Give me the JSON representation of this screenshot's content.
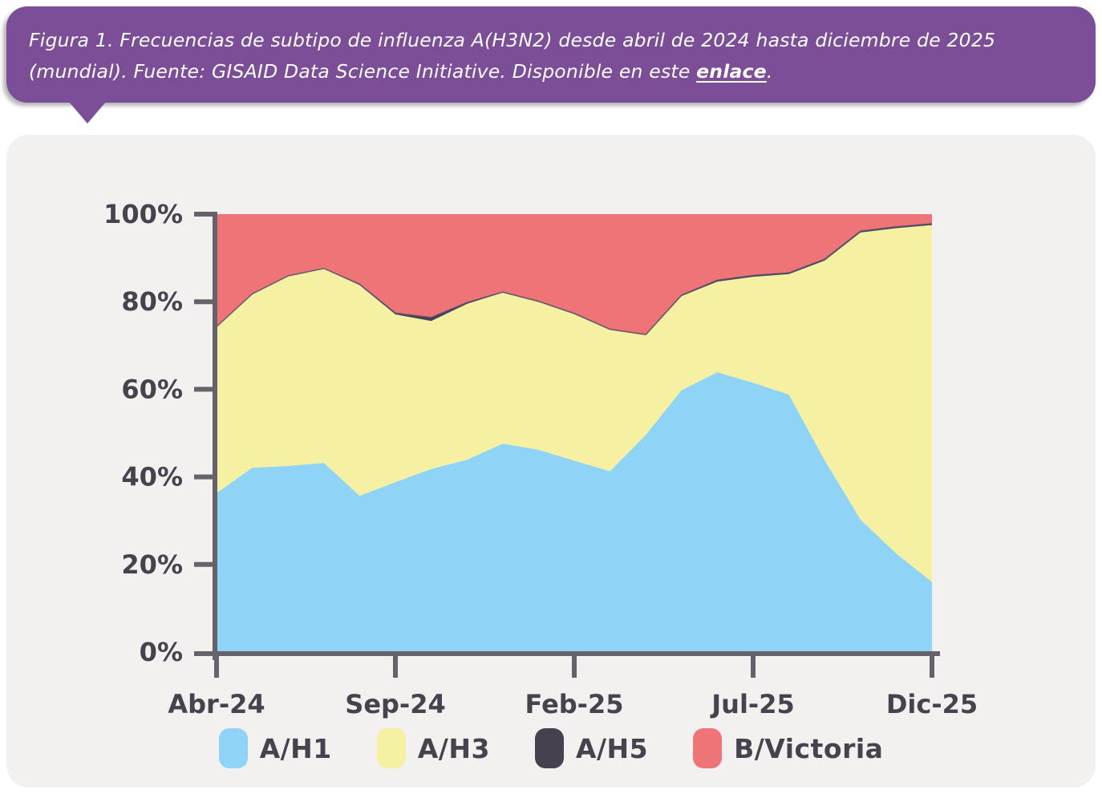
{
  "callout": {
    "caption_prefix": "Figura 1. Frecuencias de subtipo de influenza A(H3N2) desde abril de 2024 hasta diciembre de 2025 (mundial). Fuente: GISAID Data Science Initiative. Disponible en este ",
    "link_text": "enlace",
    "caption_suffix": ".",
    "bg_color": "#7B4E97",
    "text_color": "#FFFFFF"
  },
  "chart_data": {
    "type": "area",
    "stacked": true,
    "normalized_percent": true,
    "grid": false,
    "legend_position": "bottom",
    "ylim": [
      0,
      100
    ],
    "y_ticks": [
      "0%",
      "20%",
      "40%",
      "60%",
      "80%",
      "100%"
    ],
    "x": [
      "Abr-24",
      "May-24",
      "Jun-24",
      "Jul-24",
      "Ago-24",
      "Sep-24",
      "Oct-24",
      "Nov-24",
      "Dic-24",
      "Ene-25",
      "Feb-25",
      "Mar-25",
      "Abr-25",
      "May-25",
      "Jun-25",
      "Jul-25",
      "Ago-25",
      "Sep-25",
      "Oct-25",
      "Nov-25",
      "Dic-25"
    ],
    "x_tick_labels": [
      "Abr-24",
      "Sep-24",
      "Feb-25",
      "Jul-25",
      "Dic-25"
    ],
    "x_tick_indices": [
      0,
      5,
      10,
      15,
      20
    ],
    "series": [
      {
        "name": "A/H1",
        "color": "#8FD4F6",
        "values": [
          36.3,
          42.1,
          42.5,
          43.2,
          35.7,
          38.8,
          41.8,
          43.9,
          47.6,
          46.2,
          43.7,
          41.3,
          49.6,
          59.8,
          63.9,
          61.5,
          58.8,
          43.8,
          30.3,
          22.5,
          16.0
        ]
      },
      {
        "name": "A/H3",
        "color": "#F5F0A2",
        "values": [
          38.0,
          39.7,
          43.4,
          44.4,
          48.1,
          38.3,
          33.8,
          35.6,
          34.5,
          33.8,
          33.5,
          32.3,
          22.8,
          21.5,
          20.7,
          24.2,
          27.5,
          45.6,
          65.5,
          74.3,
          81.5
        ]
      },
      {
        "name": "A/H5",
        "color": "#45414E",
        "values": [
          0.0,
          0.0,
          0.0,
          0.0,
          0.2,
          0.3,
          0.8,
          0.3,
          0.1,
          0.1,
          0.1,
          0.1,
          0.1,
          0.2,
          0.3,
          0.3,
          0.3,
          0.3,
          0.3,
          0.3,
          0.3
        ]
      },
      {
        "name": "B/Victoria",
        "color": "#EE7478",
        "values": [
          25.7,
          18.2,
          14.1,
          12.4,
          16.0,
          22.6,
          23.6,
          20.2,
          17.8,
          19.9,
          22.7,
          26.3,
          27.5,
          18.5,
          15.1,
          14.0,
          13.4,
          10.3,
          3.9,
          2.9,
          2.2
        ]
      }
    ],
    "axis_color": "#65626C",
    "label_color": "#46424E"
  }
}
